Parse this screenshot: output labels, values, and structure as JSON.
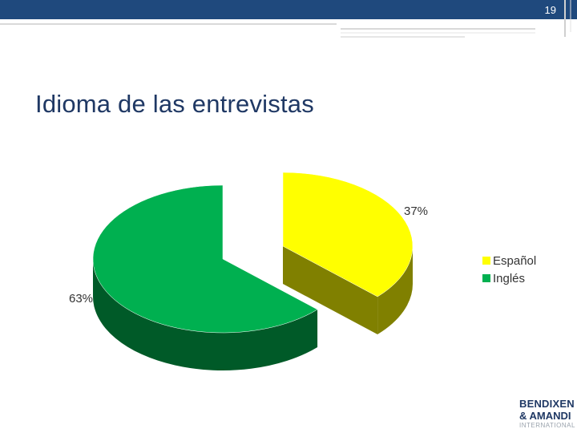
{
  "header": {
    "page_number": "19",
    "bar_color": "#1f497d"
  },
  "slide": {
    "title": "Idioma de las entrevistas"
  },
  "logo": {
    "line1": "BENDIXEN",
    "line2": "& AMANDI",
    "line3": "INTERNATIONAL"
  },
  "chart_data": {
    "type": "pie",
    "style": "3d-exploded",
    "title": "",
    "slices": [
      {
        "label": "Español",
        "value": 37,
        "display": "37%",
        "color": "#ffff00",
        "side_color": "#808000"
      },
      {
        "label": "Inglés",
        "value": 63,
        "display": "63%",
        "color": "#00b050",
        "side_color": "#005a28"
      }
    ],
    "legend": {
      "position": "right",
      "entries": [
        "Español",
        "Inglés"
      ]
    }
  }
}
